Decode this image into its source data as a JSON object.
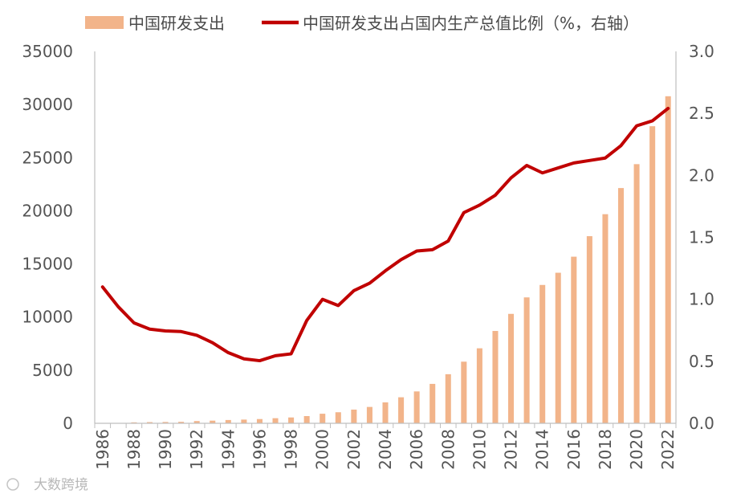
{
  "colors": {
    "bar": "#F2B48A",
    "line": "#C00000",
    "axis": "#bfbfbf",
    "tick": "#555555"
  },
  "watermark": "大数跨境",
  "chart_data": {
    "type": "bar+line",
    "legend": [
      "中国研发支出",
      "中国研发支出占国内生产总值比例（%，右轴）"
    ],
    "categories": [
      1986,
      1987,
      1988,
      1989,
      1990,
      1991,
      1992,
      1993,
      1994,
      1995,
      1996,
      1997,
      1998,
      1999,
      2000,
      2001,
      2002,
      2003,
      2004,
      2005,
      2006,
      2007,
      2008,
      2009,
      2010,
      2011,
      2012,
      2013,
      2014,
      2015,
      2016,
      2017,
      2018,
      2019,
      2020,
      2021,
      2022
    ],
    "x_tick_labels": [
      "1986",
      "1988",
      "1990",
      "1992",
      "1994",
      "1996",
      "1998",
      "2000",
      "2002",
      "2004",
      "2006",
      "2008",
      "2010",
      "2012",
      "2014",
      "2016",
      "2018",
      "2020",
      "2022"
    ],
    "series": [
      {
        "name": "中国研发支出",
        "type": "bar",
        "axis": "left",
        "values": [
          0,
          0,
          90,
          110,
          125,
          140,
          210,
          250,
          310,
          350,
          400,
          480,
          550,
          680,
          900,
          1040,
          1290,
          1540,
          1970,
          2450,
          3000,
          3710,
          4620,
          5800,
          7060,
          8690,
          10300,
          11850,
          13020,
          14170,
          15680,
          17610,
          19680,
          22140,
          24390,
          27960,
          30780
        ]
      },
      {
        "name": "中国研发支出占国内生产总值比例（%，右轴）",
        "type": "line",
        "axis": "right",
        "values": [
          1.1,
          0.94,
          0.81,
          0.76,
          0.745,
          0.74,
          0.71,
          0.65,
          0.57,
          0.52,
          0.505,
          0.545,
          0.56,
          0.83,
          1.0,
          0.95,
          1.07,
          1.13,
          1.23,
          1.32,
          1.39,
          1.4,
          1.47,
          1.7,
          1.76,
          1.84,
          1.98,
          2.08,
          2.02,
          2.06,
          2.1,
          2.12,
          2.14,
          2.24,
          2.4,
          2.44,
          2.54
        ]
      }
    ],
    "y_left": {
      "ylim": [
        0,
        35000
      ],
      "ticks": [
        "0",
        "5000",
        "10000",
        "15000",
        "20000",
        "25000",
        "30000",
        "35000"
      ]
    },
    "y_right": {
      "ylim": [
        0,
        3.0
      ],
      "ticks": [
        "0.0",
        "0.5",
        "1.0",
        "1.5",
        "2.0",
        "2.5",
        "3.0"
      ]
    }
  }
}
